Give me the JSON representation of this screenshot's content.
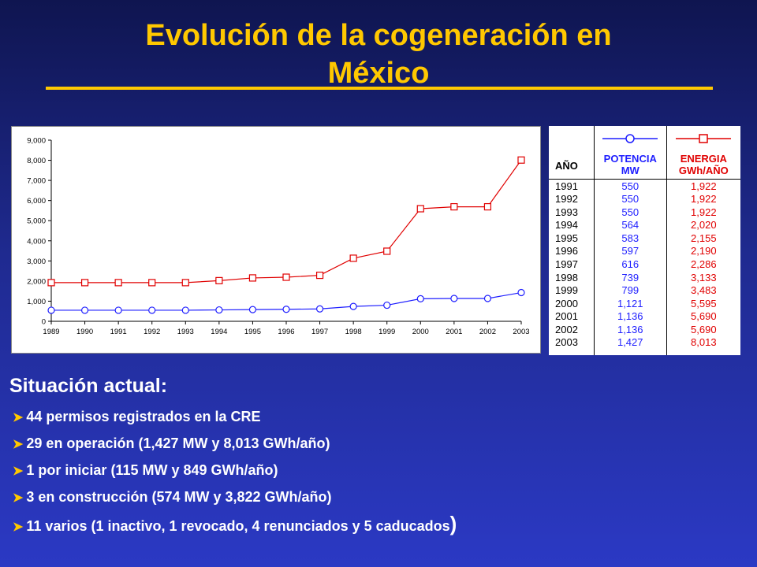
{
  "title": {
    "line1": "Evolución de la cogeneración en",
    "line2": "México"
  },
  "colors": {
    "title": "#ffc800",
    "potencia": "#1e1eff",
    "energia": "#e00000",
    "background_top": "#0f1550",
    "background_bottom": "#2b39c4"
  },
  "chart_data": {
    "type": "line",
    "title": "",
    "xlabel": "",
    "ylabel": "",
    "categories": [
      "1989",
      "1990",
      "1991",
      "1992",
      "1993",
      "1994",
      "1995",
      "1996",
      "1997",
      "1998",
      "1999",
      "2000",
      "2001",
      "2002",
      "2003"
    ],
    "yticks": [
      "0",
      "1,000",
      "2,000",
      "3,000",
      "4,000",
      "5,000",
      "6,000",
      "7,000",
      "8,000",
      "9,000"
    ],
    "ylim": [
      0,
      9000
    ],
    "grid": false,
    "legend": "none",
    "series": [
      {
        "marker": "circle",
        "color": "#1e1eff",
        "values": [
          550,
          550,
          550,
          550,
          550,
          564,
          583,
          597,
          616,
          739,
          799,
          1121,
          1136,
          1136,
          1427
        ]
      },
      {
        "marker": "square",
        "color": "#e00000",
        "values": [
          1922,
          1922,
          1922,
          1922,
          1922,
          2020,
          2155,
          2190,
          2286,
          3133,
          3483,
          5595,
          5690,
          5690,
          8013
        ]
      }
    ]
  },
  "table": {
    "headers": {
      "year": "AÑO",
      "potencia_l1": "POTENCIA",
      "potencia_l2": "MW",
      "energia_l1": "ENERGIA",
      "energia_l2": "GWh/AÑO"
    },
    "rows": [
      {
        "year": "1991",
        "potencia": "550",
        "energia": "1,922"
      },
      {
        "year": "1992",
        "potencia": "550",
        "energia": "1,922"
      },
      {
        "year": "1993",
        "potencia": "550",
        "energia": "1,922"
      },
      {
        "year": "1994",
        "potencia": "564",
        "energia": "2,020"
      },
      {
        "year": "1995",
        "potencia": "583",
        "energia": "2,155"
      },
      {
        "year": "1996",
        "potencia": "597",
        "energia": "2,190"
      },
      {
        "year": "1997",
        "potencia": "616",
        "energia": "2,286"
      },
      {
        "year": "1998",
        "potencia": "739",
        "energia": "3,133"
      },
      {
        "year": "1999",
        "potencia": "799",
        "energia": "3,483"
      },
      {
        "year": "2000",
        "potencia": "1,121",
        "energia": "5,595"
      },
      {
        "year": "2001",
        "potencia": "1,136",
        "energia": "5,690"
      },
      {
        "year": "2002",
        "potencia": "1,136",
        "energia": "5,690"
      },
      {
        "year": "2003",
        "potencia": "1,427",
        "energia": "8,013"
      }
    ]
  },
  "status": {
    "heading": "Situación actual:",
    "items": [
      "44 permisos registrados en la CRE",
      "29 en operación (1,427 MW y 8,013 GWh/año)",
      "1 por iniciar (115 MW y 849 GWh/año)",
      "3 en construcción (574 MW y 3,822 GWh/año)",
      "11 varios (1 inactivo, 1 revocado, 4 renunciados y 5 caducados",
      ")"
    ],
    "bullet_icon": "arrow-bullet-icon"
  }
}
